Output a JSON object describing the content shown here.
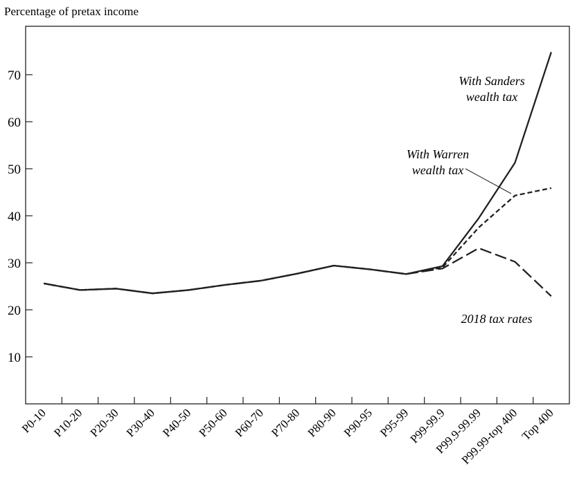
{
  "chart_data": {
    "type": "line",
    "ylabel": "Percentage of pretax income",
    "xlabel": "",
    "ylim": [
      0,
      80
    ],
    "yticks": [
      10,
      20,
      30,
      40,
      50,
      60,
      70
    ],
    "grid": false,
    "categories": [
      "P0-10",
      "P10-20",
      "P20-30",
      "P30-40",
      "P40-50",
      "P50-60",
      "P60-70",
      "P70-80",
      "P80-90",
      "P90-95",
      "P95-99",
      "P99-99.9",
      "P99.9-99.99",
      "P99.99-top 400",
      "Top 400"
    ],
    "series": [
      {
        "label_lines": [
          "With Sanders",
          "wealth tax"
        ],
        "style": "solid",
        "values": [
          25.6,
          24.2,
          24.5,
          23.5,
          24.2,
          25.3,
          26.2,
          27.7,
          29.4,
          28.6,
          27.6,
          29.3,
          39.5,
          51.3,
          74.8
        ]
      },
      {
        "label_lines": [
          "With Warren",
          "wealth tax"
        ],
        "style": "short-dash",
        "values": [
          25.6,
          24.2,
          24.5,
          23.5,
          24.2,
          25.3,
          26.2,
          27.7,
          29.4,
          28.6,
          27.6,
          29.0,
          37.5,
          44.3,
          45.9
        ]
      },
      {
        "label_lines": [
          "2018 tax rates"
        ],
        "style": "long-dash",
        "values": [
          25.6,
          24.2,
          24.5,
          23.5,
          24.2,
          25.3,
          26.2,
          27.7,
          29.4,
          28.6,
          27.6,
          28.8,
          33.1,
          30.2,
          22.9
        ]
      }
    ]
  }
}
